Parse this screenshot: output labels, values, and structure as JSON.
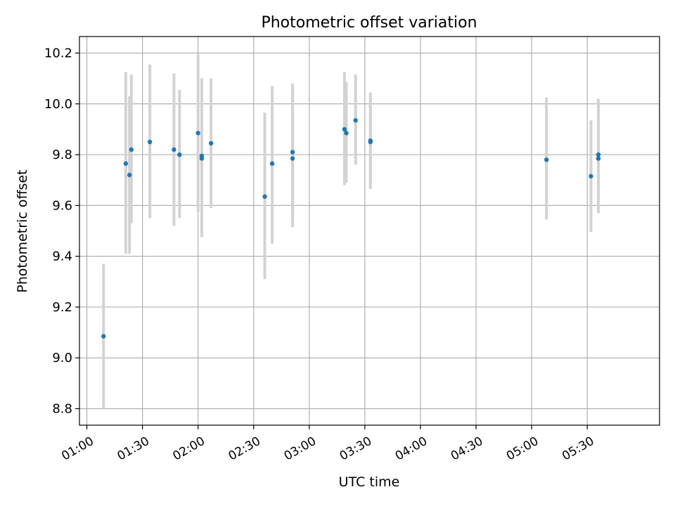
{
  "chart_data": {
    "type": "scatter",
    "title": "Photometric offset variation",
    "xlabel": "UTC time",
    "ylabel": "Photometric offset",
    "xlim": [
      "00:56",
      "06:09"
    ],
    "ylim": [
      8.735,
      10.265
    ],
    "grid": true,
    "x_ticks": [
      "01:00",
      "01:30",
      "02:00",
      "02:30",
      "03:00",
      "03:30",
      "04:00",
      "04:30",
      "05:00",
      "05:30"
    ],
    "y_ticks": [
      8.8,
      9.0,
      9.2,
      9.4,
      9.6,
      9.8,
      10.0,
      10.2
    ],
    "colors": {
      "points": "#1f77b4",
      "errorbars": "#d3d3d3",
      "grid": "#b0b0b0"
    },
    "points": [
      {
        "t": "01:09",
        "y": 9.085,
        "low": 8.8,
        "high": 9.37
      },
      {
        "t": "01:21",
        "y": 9.765,
        "low": 9.41,
        "high": 10.125
      },
      {
        "t": "01:23",
        "y": 9.72,
        "low": 9.41,
        "high": 10.03
      },
      {
        "t": "01:24",
        "y": 9.82,
        "low": 9.53,
        "high": 10.115
      },
      {
        "t": "01:34",
        "y": 9.85,
        "low": 9.55,
        "high": 10.155
      },
      {
        "t": "01:47",
        "y": 9.82,
        "low": 9.52,
        "high": 10.12
      },
      {
        "t": "01:50",
        "y": 9.8,
        "low": 9.55,
        "high": 10.055
      },
      {
        "t": "02:00",
        "y": 9.885,
        "low": 9.575,
        "high": 10.195
      },
      {
        "t": "02:02",
        "y": 9.785,
        "low": 9.475,
        "high": 10.1
      },
      {
        "t": "02:02",
        "y": 9.795,
        "low": 9.49,
        "high": 10.1
      },
      {
        "t": "02:07",
        "y": 9.845,
        "low": 9.59,
        "high": 10.1
      },
      {
        "t": "02:36",
        "y": 9.635,
        "low": 9.31,
        "high": 9.965
      },
      {
        "t": "02:40",
        "y": 9.765,
        "low": 9.45,
        "high": 10.07
      },
      {
        "t": "02:51",
        "y": 9.785,
        "low": 9.515,
        "high": 10.08
      },
      {
        "t": "02:51",
        "y": 9.81,
        "low": 9.54,
        "high": 10.08
      },
      {
        "t": "03:19",
        "y": 9.9,
        "low": 9.68,
        "high": 10.125
      },
      {
        "t": "03:20",
        "y": 9.885,
        "low": 9.69,
        "high": 10.085
      },
      {
        "t": "03:25",
        "y": 9.935,
        "low": 9.76,
        "high": 10.115
      },
      {
        "t": "03:33",
        "y": 9.85,
        "low": 9.665,
        "high": 10.035
      },
      {
        "t": "03:33",
        "y": 9.855,
        "low": 9.67,
        "high": 10.045
      },
      {
        "t": "05:08",
        "y": 9.78,
        "low": 9.545,
        "high": 10.025
      },
      {
        "t": "05:32",
        "y": 9.715,
        "low": 9.495,
        "high": 9.935
      },
      {
        "t": "05:36",
        "y": 9.785,
        "low": 9.57,
        "high": 10.02
      },
      {
        "t": "05:36",
        "y": 9.8,
        "low": 9.585,
        "high": 10.02
      }
    ]
  }
}
